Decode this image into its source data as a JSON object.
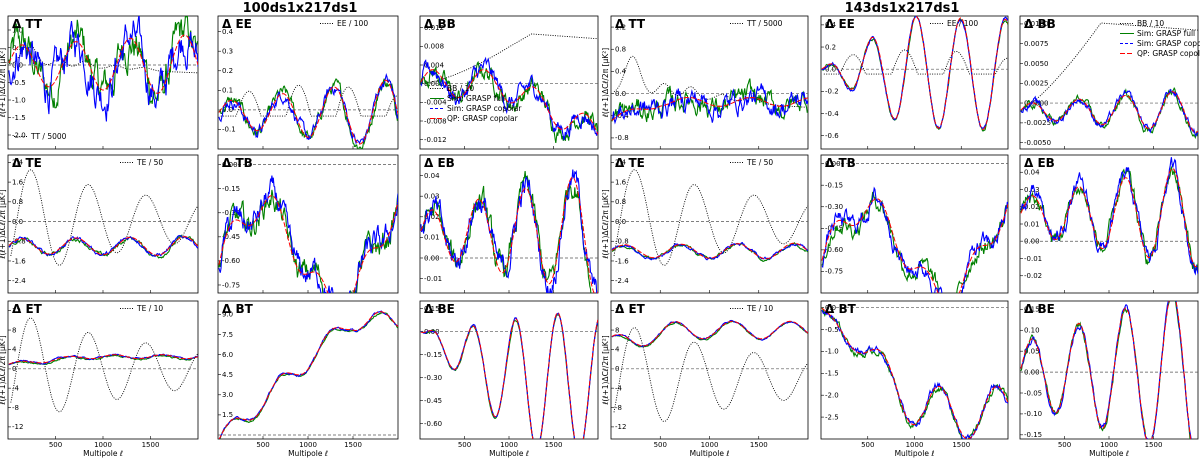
{
  "figure": {
    "groups": [
      {
        "title": "100ds1x217ds1"
      },
      {
        "title": "143ds1x217ds1"
      }
    ],
    "xlabel": "Multipole ℓ",
    "ylabel": "ℓ(ℓ+1)ΔCℓ/2π   [μK²]",
    "colors": {
      "dotted": "#000000",
      "green": "#008000",
      "blue": "#0000ff",
      "red": "#ff0000",
      "zero": "#555555"
    }
  },
  "chart_data": [
    {
      "type": "line",
      "group": 0,
      "title": "Δ TT",
      "ylim": [
        -2.4,
        1.4
      ],
      "yticks": [
        "-2.0",
        "-1.5",
        "-1.0",
        "-0.5",
        "0.0",
        "0.5",
        "1.0"
      ],
      "ytick_values": [
        -2.0,
        -1.5,
        -1.0,
        -0.5,
        0.0,
        0.5,
        1.0
      ],
      "xlim": [
        0,
        2000
      ],
      "xticks": [],
      "legend": [
        {
          "label": "TT / 5000",
          "style": "dotted",
          "pos": "bottom-left"
        }
      ],
      "ref": {
        "kind": "tt",
        "scale": 0.45,
        "offset": 0.35
      },
      "resid": {
        "amp": 0.55,
        "offset": 0.0,
        "noise": 0.35,
        "grow": 0.6
      }
    },
    {
      "type": "line",
      "group": 0,
      "title": "Δ EE",
      "ylim": [
        -0.2,
        0.48
      ],
      "yticks": [
        "-0.1",
        "0.0",
        "0.1",
        "0.2",
        "0.3",
        "0.4"
      ],
      "ytick_values": [
        -0.1,
        0.0,
        0.1,
        0.2,
        0.3,
        0.4
      ],
      "xlim": [
        0,
        2000
      ],
      "xticks": [],
      "legend": [
        {
          "label": "EE / 100",
          "style": "dotted",
          "pos": "top-right"
        }
      ],
      "ref": {
        "kind": "ee",
        "scale": 0.16,
        "offset": 0.22
      },
      "resid": {
        "amp": 0.06,
        "offset": -0.02,
        "noise": 0.02,
        "grow": 2.0
      }
    },
    {
      "type": "line",
      "group": 0,
      "title": "Δ BB",
      "ylim": [
        -0.014,
        0.0145
      ],
      "yticks": [
        "-0.012",
        "-0.008",
        "-0.004",
        "0.000",
        "0.004",
        "0.008",
        "0.012"
      ],
      "ytick_values": [
        -0.012,
        -0.008,
        -0.004,
        0.0,
        0.004,
        0.008,
        0.012
      ],
      "xlim": [
        0,
        2000
      ],
      "xticks": [],
      "legend": [
        {
          "label": "BB / 10",
          "style": "dotted",
          "pos": "mid-left"
        },
        {
          "label": "Sim: GRASP full",
          "style": "green",
          "pos": "mid-left"
        },
        {
          "label": "Sim: GRASP copolar",
          "style": "blue",
          "pos": "mid-left"
        },
        {
          "label": "QP: GRASP copolar",
          "style": "red",
          "pos": "mid-left"
        }
      ],
      "ref": {
        "kind": "bb",
        "scale": 0.011,
        "offset": 0.0
      },
      "resid": {
        "amp": 0.003,
        "offset": 0.0,
        "noise": 0.0012,
        "grow": 0.0,
        "trend": -0.011
      }
    },
    {
      "type": "line",
      "group": 0,
      "title": "Δ TE",
      "ylim": [
        -2.9,
        2.7
      ],
      "yticks": [
        "-2.4",
        "-1.6",
        "-0.8",
        "0.0",
        "0.8",
        "1.6",
        "2.4"
      ],
      "ytick_values": [
        -2.4,
        -1.6,
        -0.8,
        0.0,
        0.8,
        1.6,
        2.4
      ],
      "xlim": [
        0,
        2000
      ],
      "xticks": [],
      "legend": [
        {
          "label": "TE / 50",
          "style": "dotted",
          "pos": "top-right"
        }
      ],
      "ref": {
        "kind": "te",
        "scale": 2.4,
        "offset": 0.0
      },
      "resid": {
        "amp": 0.3,
        "offset": -1.0,
        "noise": 0.05,
        "grow": 0.3
      }
    },
    {
      "type": "line",
      "group": 0,
      "title": "Δ TB",
      "ylim": [
        -0.8,
        0.06
      ],
      "yticks": [
        "-0.75",
        "-0.60",
        "-0.45",
        "-0.30",
        "-0.15",
        "0.00"
      ],
      "ytick_values": [
        -0.75,
        -0.6,
        -0.45,
        -0.3,
        -0.15,
        0.0
      ],
      "xlim": [
        0,
        2000
      ],
      "xticks": [],
      "legend": [],
      "ref": null,
      "resid": {
        "amp": 0.12,
        "offset": -0.45,
        "noise": 0.05,
        "grow": 0.0,
        "shape": "tb"
      }
    },
    {
      "type": "line",
      "group": 0,
      "title": "Δ EB",
      "ylim": [
        -0.017,
        0.05
      ],
      "yticks": [
        "-0.01",
        "0.00",
        "0.01",
        "0.02",
        "0.03",
        "0.04"
      ],
      "ytick_values": [
        -0.01,
        0.0,
        0.01,
        0.02,
        0.03,
        0.04
      ],
      "xlim": [
        0,
        2000
      ],
      "xticks": [],
      "legend": [],
      "ref": null,
      "resid": {
        "amp": 0.02,
        "offset": 0.012,
        "noise": 0.004,
        "grow": 1.0,
        "shape": "osc"
      }
    },
    {
      "type": "line",
      "group": 0,
      "title": "Δ ET",
      "ylim": [
        -14.5,
        14
      ],
      "yticks": [
        "-12",
        "-8",
        "-4",
        "0",
        "4",
        "8",
        "12"
      ],
      "ytick_values": [
        -12,
        -8,
        -4,
        0,
        4,
        8,
        12
      ],
      "xlim": [
        0,
        2000
      ],
      "xticks": [
        "500",
        "1000",
        "1500"
      ],
      "xtick_values": [
        500,
        1000,
        1500
      ],
      "legend": [
        {
          "label": "TE / 10",
          "style": "dotted",
          "pos": "top-right"
        }
      ],
      "ref": {
        "kind": "te",
        "scale": 12,
        "offset": 0.0
      },
      "resid": {
        "amp": 0.5,
        "offset": 2.5,
        "noise": 0.1,
        "grow": 0.0,
        "shape": "et"
      }
    },
    {
      "type": "line",
      "group": 0,
      "title": "Δ BT",
      "ylim": [
        -0.3,
        10
      ],
      "yticks": [
        "1.5",
        "3.0",
        "4.5",
        "6.0",
        "7.5",
        "9.0"
      ],
      "ytick_values": [
        1.5,
        3.0,
        4.5,
        6.0,
        7.5,
        9.0
      ],
      "xlim": [
        0,
        2000
      ],
      "xticks": [
        "500",
        "1000",
        "1500"
      ],
      "xtick_values": [
        500,
        1000,
        1500
      ],
      "legend": [],
      "ref": null,
      "resid": {
        "amp": 1.0,
        "offset": 0.0,
        "noise": 0.05,
        "grow": 0.0,
        "shape": "bt_up"
      }
    },
    {
      "type": "line",
      "group": 0,
      "title": "Δ BE",
      "ylim": [
        -0.7,
        0.2
      ],
      "yticks": [
        "-0.60",
        "-0.45",
        "-0.30",
        "-0.15",
        "0.00",
        "0.15"
      ],
      "ytick_values": [
        -0.6,
        -0.45,
        -0.3,
        -0.15,
        0.0,
        0.15
      ],
      "xlim": [
        0,
        2000
      ],
      "xticks": [
        "500",
        "1000",
        "1500"
      ],
      "xtick_values": [
        500,
        1000,
        1500
      ],
      "legend": [],
      "ref": null,
      "resid": {
        "amp": 0.3,
        "offset": -0.25,
        "noise": 0.005,
        "grow": 1.0,
        "shape": "be"
      }
    },
    {
      "type": "line",
      "group": 1,
      "title": "Δ TT",
      "ylim": [
        -1.0,
        1.4
      ],
      "yticks": [
        "-0.8",
        "-0.4",
        "0.0",
        "0.4",
        "0.8",
        "1.2"
      ],
      "ytick_values": [
        -0.8,
        -0.4,
        0.0,
        0.4,
        0.8,
        1.2
      ],
      "xlim": [
        0,
        2000
      ],
      "xticks": [],
      "legend": [
        {
          "label": "TT / 5000",
          "style": "dotted",
          "pos": "top-right"
        }
      ],
      "ref": {
        "kind": "tt",
        "scale": 0.5,
        "offset": 0.55
      },
      "resid": {
        "amp": 0.25,
        "offset": -0.4,
        "noise": 0.12,
        "grow": 0.0,
        "shape": "tt2"
      }
    },
    {
      "type": "line",
      "group": 1,
      "title": "Δ EE",
      "ylim": [
        -0.72,
        0.48
      ],
      "yticks": [
        "-0.6",
        "-0.4",
        "-0.2",
        "0.0",
        "0.2",
        "0.4"
      ],
      "ytick_values": [
        -0.6,
        -0.4,
        -0.2,
        0.0,
        0.2,
        0.4
      ],
      "xlim": [
        0,
        2000
      ],
      "xticks": [],
      "legend": [
        {
          "label": "EE / 100",
          "style": "dotted",
          "pos": "top-right"
        }
      ],
      "ref": {
        "kind": "ee",
        "scale": 0.22,
        "offset": 0.2
      },
      "resid": {
        "amp": 0.35,
        "offset": -0.15,
        "noise": 0.01,
        "grow": 0.0,
        "shape": "ee2"
      }
    },
    {
      "type": "line",
      "group": 1,
      "title": "Δ BB",
      "ylim": [
        -0.0058,
        0.011
      ],
      "yticks": [
        "-0.0050",
        "-0.0025",
        "0.0000",
        "0.0025",
        "0.0050",
        "0.0075",
        "0.0100"
      ],
      "ytick_values": [
        -0.005,
        -0.0025,
        0.0,
        0.0025,
        0.005,
        0.0075,
        0.01
      ],
      "xlim": [
        0,
        2000
      ],
      "xticks": [],
      "legend": [
        {
          "label": "BB / 10",
          "style": "dotted",
          "pos": "top-right"
        },
        {
          "label": "Sim: GRASP full",
          "style": "green",
          "pos": "top-right"
        },
        {
          "label": "Sim: GRASP copolar",
          "style": "blue",
          "pos": "top-right"
        },
        {
          "label": "QP: GRASP copolar",
          "style": "red",
          "pos": "top-right"
        }
      ],
      "ref": {
        "kind": "bb2",
        "scale": 0.011,
        "offset": 0.0
      },
      "resid": {
        "amp": 0.0018,
        "offset": -0.001,
        "noise": 0.0003,
        "grow": 1.0,
        "shape": "osc"
      }
    },
    {
      "type": "line",
      "group": 1,
      "title": "Δ TE",
      "ylim": [
        -2.9,
        2.7
      ],
      "yticks": [
        "-2.4",
        "-1.6",
        "-0.8",
        "0.0",
        "0.8",
        "1.6",
        "2.4"
      ],
      "ytick_values": [
        -2.4,
        -1.6,
        -0.8,
        0.0,
        0.8,
        1.6,
        2.4
      ],
      "xlim": [
        0,
        2000
      ],
      "xticks": [],
      "legend": [
        {
          "label": "TE / 50",
          "style": "dotted",
          "pos": "top-right"
        }
      ],
      "ref": {
        "kind": "te",
        "scale": 2.4,
        "offset": 0.0
      },
      "resid": {
        "amp": 0.25,
        "offset": -1.2,
        "noise": 0.04,
        "grow": 0.3
      }
    },
    {
      "type": "line",
      "group": 1,
      "title": "Δ TB",
      "ylim": [
        -0.9,
        0.06
      ],
      "yticks": [
        "-0.75",
        "-0.60",
        "-0.45",
        "-0.30",
        "-0.15",
        "0.00"
      ],
      "ytick_values": [
        -0.75,
        -0.6,
        -0.45,
        -0.3,
        -0.15,
        0.0
      ],
      "xlim": [
        0,
        2000
      ],
      "xticks": [],
      "legend": [],
      "ref": null,
      "resid": {
        "amp": 0.12,
        "offset": -0.5,
        "noise": 0.04,
        "grow": 0.0,
        "shape": "tb"
      }
    },
    {
      "type": "line",
      "group": 1,
      "title": "Δ EB",
      "ylim": [
        -0.03,
        0.05
      ],
      "yticks": [
        "-0.02",
        "-0.01",
        "0.00",
        "0.01",
        "0.02",
        "0.03",
        "0.04"
      ],
      "ytick_values": [
        -0.02,
        -0.01,
        0.0,
        0.01,
        0.02,
        0.03,
        0.04
      ],
      "xlim": [
        0,
        2000
      ],
      "xticks": [],
      "legend": [],
      "ref": null,
      "resid": {
        "amp": 0.02,
        "offset": 0.015,
        "noise": 0.003,
        "grow": 1.0,
        "shape": "osc"
      }
    },
    {
      "type": "line",
      "group": 1,
      "title": "Δ ET",
      "ylim": [
        -14.5,
        14
      ],
      "yticks": [
        "-12",
        "-8",
        "-4",
        "0",
        "4",
        "8",
        "12"
      ],
      "ytick_values": [
        -12,
        -8,
        -4,
        0,
        4,
        8,
        12
      ],
      "xlim": [
        0,
        2000
      ],
      "xticks": [
        "500",
        "1000",
        "1500"
      ],
      "xtick_values": [
        500,
        1000,
        1500
      ],
      "legend": [
        {
          "label": "TE / 10",
          "style": "dotted",
          "pos": "top-right"
        }
      ],
      "ref": {
        "kind": "te",
        "scale": 12,
        "offset": -2.0
      },
      "resid": {
        "amp": 1.5,
        "offset": 8.0,
        "noise": 0.1,
        "grow": 0.0,
        "shape": "et2"
      }
    },
    {
      "type": "line",
      "group": 1,
      "title": "Δ BT",
      "ylim": [
        -3.0,
        0.15
      ],
      "yticks": [
        "-2.5",
        "-2.0",
        "-1.5",
        "-1.0",
        "-0.5",
        "0.0"
      ],
      "ytick_values": [
        -2.5,
        -2.0,
        -1.5,
        -1.0,
        -0.5,
        0.0
      ],
      "xlim": [
        0,
        2000
      ],
      "xticks": [
        "500",
        "1000",
        "1500"
      ],
      "xtick_values": [
        500,
        1000,
        1500
      ],
      "legend": [],
      "ref": null,
      "resid": {
        "amp": 0.6,
        "offset": -1.7,
        "noise": 0.05,
        "grow": 0.0,
        "shape": "bt_down"
      }
    },
    {
      "type": "line",
      "group": 1,
      "title": "Δ BE",
      "ylim": [
        -0.16,
        0.17
      ],
      "yticks": [
        "-0.15",
        "-0.10",
        "-0.05",
        "0.00",
        "0.05",
        "0.10",
        "0.15"
      ],
      "ytick_values": [
        -0.15,
        -0.1,
        -0.05,
        0.0,
        0.05,
        0.1,
        0.15
      ],
      "xlim": [
        0,
        2000
      ],
      "xticks": [
        "500",
        "1000",
        "1500"
      ],
      "xtick_values": [
        500,
        1000,
        1500
      ],
      "legend": [],
      "ref": null,
      "resid": {
        "amp": 0.14,
        "offset": 0.0,
        "noise": 0.005,
        "grow": 1.0,
        "shape": "osc"
      }
    }
  ]
}
